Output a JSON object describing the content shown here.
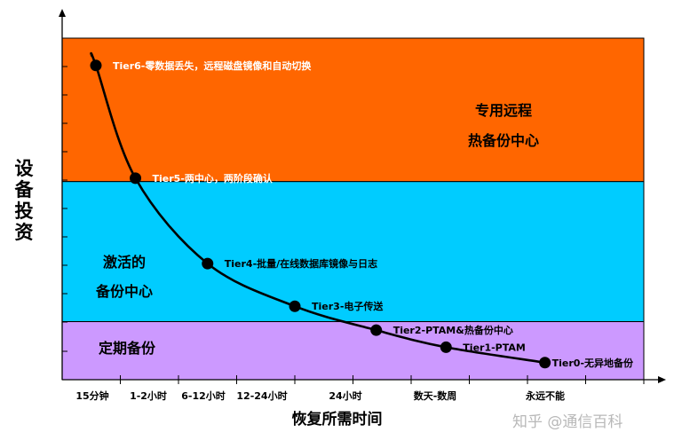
{
  "chart_data": {
    "type": "line",
    "ylabel": "设备投资",
    "xlabel": "恢复所需时间",
    "categories": [
      "15分钟",
      "1-2小时",
      "6-12小时",
      "12-24小时",
      "24小时",
      "数天-数周",
      "永远不能"
    ],
    "bands": [
      {
        "lines": [
          "专用远程",
          "热备份中心"
        ],
        "color": "#ff6600",
        "range": [
          58,
          100
        ]
      },
      {
        "lines": [
          "激活的",
          "备份中心"
        ],
        "color": "#00ccff",
        "range": [
          17,
          58
        ]
      },
      {
        "lines": [
          "定期备份"
        ],
        "color": "#cc99ff",
        "range": [
          0,
          17
        ]
      }
    ],
    "series": [
      {
        "points": [
          {
            "label": "Tier6-零数据丢失，远程磁盘镜像和自动切换",
            "x": 0.58,
            "y": 92
          },
          {
            "label": "Tier5-两中心，两阶段确认",
            "x": 1.26,
            "y": 59
          },
          {
            "label": "Tier4-批量/在线数据库镜像与日志",
            "x": 2.5,
            "y": 34
          },
          {
            "label": "Tier3-电子传送",
            "x": 4.0,
            "y": 21.5
          },
          {
            "label": "Tier2-PTAM&热备份中心",
            "x": 5.4,
            "y": 14.5
          },
          {
            "label": "Tier1-PTAM",
            "x": 6.6,
            "y": 9.5
          },
          {
            "label": "Tier0-无异地备份",
            "x": 8.3,
            "y": 5
          }
        ]
      }
    ],
    "ylim": [
      0,
      100
    ],
    "xlim": [
      0,
      10
    ],
    "grid": false
  },
  "watermark": "知乎 @通信百科"
}
